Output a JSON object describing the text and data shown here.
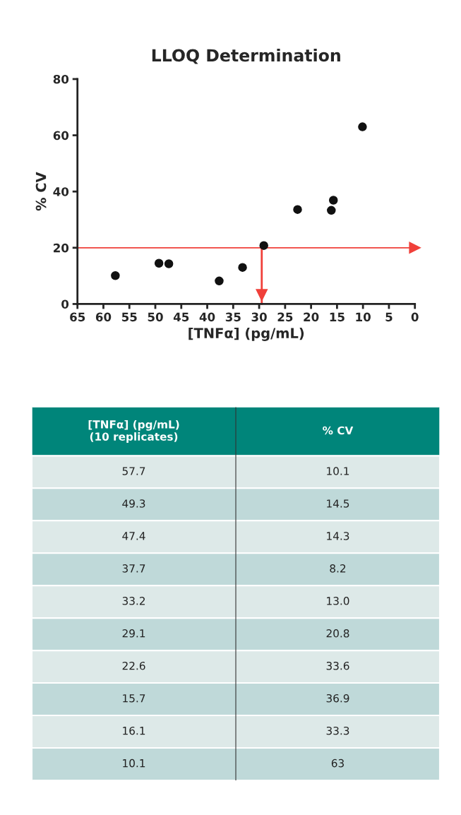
{
  "chart_data": [
    {
      "type": "scatter",
      "title": "LLOQ Determination",
      "xlabel": "[TNFα] (pg/mL)",
      "ylabel": "% CV",
      "x": [
        57.7,
        49.3,
        47.4,
        37.7,
        33.2,
        29.1,
        22.6,
        15.7,
        16.1,
        10.1
      ],
      "values": [
        10.1,
        14.5,
        14.3,
        8.2,
        13.0,
        20.8,
        33.6,
        36.9,
        33.3,
        63
      ],
      "color": "#111111",
      "marker": "circle",
      "grid": false,
      "xlim": [
        65,
        0
      ],
      "xticks": [
        65,
        60,
        55,
        50,
        45,
        40,
        35,
        30,
        25,
        20,
        15,
        10,
        5,
        0
      ],
      "ylim": [
        0,
        80
      ],
      "yticks": [
        0,
        20,
        40,
        60,
        80
      ],
      "ref_lines": [
        {
          "axis": "y",
          "value": 20,
          "color": "#f0403a"
        },
        {
          "axis": "x",
          "value": 29.5,
          "color": "#f0403a"
        }
      ]
    },
    {
      "type": "other",
      "categories": [
        "[TNFα] (pg/mL)\n(10 replicates)",
        "% CV"
      ],
      "cell_labels": [
        [
          "57.7",
          "10.1"
        ],
        [
          "49.3",
          "14.5"
        ],
        [
          "47.4",
          "14.3"
        ],
        [
          "37.7",
          "8.2"
        ],
        [
          "33.2",
          "13.0"
        ],
        [
          "29.1",
          "20.8"
        ],
        [
          "22.6",
          "33.6"
        ],
        [
          "15.7",
          "36.9"
        ],
        [
          "16.1",
          "33.3"
        ],
        [
          "10.1",
          "63"
        ]
      ]
    }
  ]
}
